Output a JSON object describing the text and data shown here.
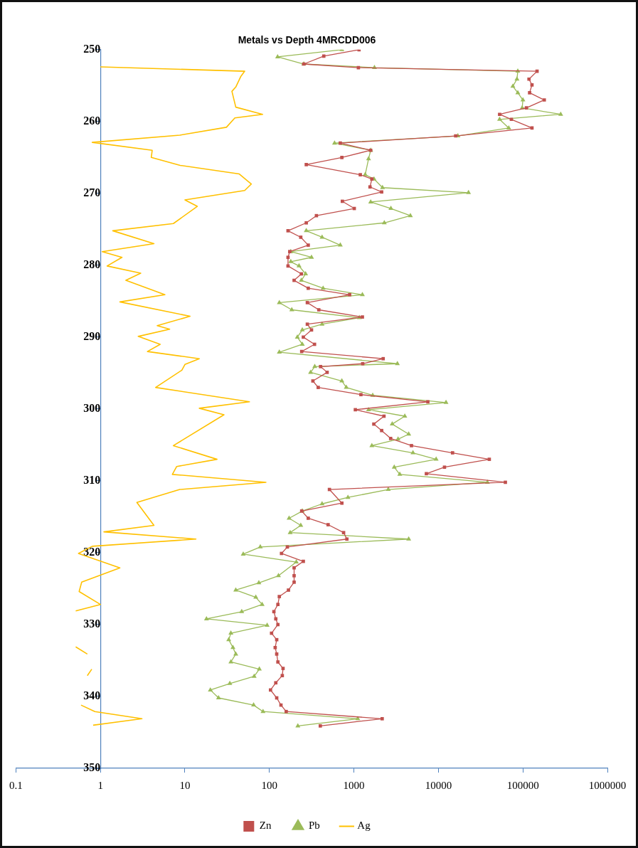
{
  "chart_data": {
    "type": "line",
    "title": "Metals vs Depth 4MRCDD006",
    "orientation": "horizontal",
    "log": "x",
    "legend": "bottom",
    "grid": false,
    "xlim": [
      0.1,
      1000000
    ],
    "xticks": [
      0.1,
      1,
      10,
      100,
      1000,
      10000,
      100000,
      1000000
    ],
    "ylim": [
      350,
      250
    ],
    "yticks": [
      250,
      260,
      270,
      280,
      290,
      300,
      310,
      320,
      330,
      340,
      350
    ],
    "series": [
      {
        "name": "Zn",
        "color": "#c0504d",
        "marker": "square",
        "x": [
          250,
          250.9,
          252,
          252.5,
          253,
          254.1,
          254.9,
          256,
          257,
          258.1,
          259,
          259.7,
          260.9,
          262,
          263,
          264,
          265,
          266,
          267.4,
          268,
          269.1,
          269.8,
          271.1,
          272.1,
          273.1,
          274.1,
          275.2,
          276.1,
          277.2,
          278.1,
          278.9,
          280.1,
          281.2,
          282.1,
          283.2,
          284.1,
          285.2,
          286.2,
          287.2,
          288.2,
          289,
          290,
          291,
          292,
          293,
          293.7,
          294.1,
          294.9,
          296.1,
          297,
          298,
          299,
          300.1,
          301,
          302.1,
          303,
          304.1,
          305.1,
          306.1,
          307,
          308.1,
          309,
          310.2,
          311.2,
          313.1,
          314.2,
          315.2,
          316.1,
          317.2,
          318.1,
          319.2,
          320.1,
          321.2,
          322.1,
          323.2,
          324.1,
          325.2,
          326.1,
          327.2,
          328.2,
          329.2,
          330,
          331.2,
          332.1,
          333.2,
          334.1,
          335.2,
          336.1,
          337.1,
          338.1,
          339.1,
          340.2,
          341.2,
          342.1,
          343.1,
          344.1
        ],
        "values": [
          1150,
          440,
          255,
          1130,
          147000,
          118000,
          128000,
          120000,
          179000,
          110000,
          53000,
          73000,
          128000,
          16000,
          690,
          1580,
          720,
          273,
          1190,
          1630,
          1550,
          2130,
          730,
          1010,
          360,
          273,
          166,
          235,
          288,
          174,
          166,
          166,
          239,
          196,
          288,
          890,
          281,
          384,
          1260,
          281,
          315,
          252,
          342,
          241,
          2220,
          1270,
          403,
          482,
          327,
          378,
          1210,
          7500,
          1040,
          2270,
          1720,
          2130,
          2720,
          4800,
          14700,
          40000,
          11800,
          7200,
          62000,
          513,
          720,
          241,
          288,
          495,
          755,
          826,
          163,
          139,
          252,
          196,
          196,
          196,
          168,
          131,
          126,
          113,
          119,
          126,
          106,
          122,
          117,
          122,
          126,
          145,
          142,
          119,
          103,
          122,
          137,
          158,
          2160,
          400
        ]
      },
      {
        "name": "Pb",
        "color": "#9bbb59",
        "marker": "triangle",
        "x": [
          250,
          251,
          252,
          252.5,
          253,
          254.1,
          255.1,
          256,
          257,
          258.1,
          259,
          259.7,
          260.9,
          262,
          263,
          264,
          265.2,
          267.4,
          268,
          269.2,
          269.9,
          271.2,
          272.1,
          273.1,
          274.1,
          275.2,
          276.1,
          277.2,
          278.1,
          278.9,
          279.5,
          280.1,
          281.2,
          282.1,
          283.2,
          284.1,
          285.2,
          286.2,
          287.3,
          288.2,
          289,
          290,
          291,
          292.1,
          293.7,
          294.1,
          294.9,
          296.1,
          297,
          298.1,
          299.1,
          300.1,
          301,
          302.1,
          303.5,
          304.2,
          305.1,
          306.1,
          307,
          308.1,
          309.1,
          310.2,
          311.2,
          312.3,
          313.2,
          314.2,
          315.2,
          316.2,
          317.2,
          318.1,
          319.2,
          320.2,
          321.3,
          323.2,
          324.2,
          325.2,
          326.2,
          327.2,
          328.2,
          329.2,
          330.1,
          331.2,
          332.1,
          333.2,
          334.1,
          335.2,
          336.2,
          337.2,
          338.2,
          339.1,
          340.2,
          341.2,
          342.1,
          343.1,
          344.1
        ],
        "values": [
          720,
          125,
          255,
          1750,
          87000,
          85000,
          76000,
          87000,
          100000,
          98000,
          280000,
          53000,
          68000,
          17000,
          590,
          1580,
          1490,
          1360,
          1730,
          2180,
          22700,
          1580,
          2740,
          4660,
          2290,
          273,
          420,
          690,
          179,
          315,
          179,
          224,
          268,
          239,
          432,
          1260,
          131,
          184,
          1160,
          420,
          245,
          214,
          245,
          131,
          3270,
          344,
          307,
          720,
          812,
          1670,
          12300,
          1490,
          4000,
          2840,
          4450,
          3330,
          1630,
          5000,
          9400,
          3000,
          3490,
          38000,
          2550,
          850,
          420,
          245,
          171,
          235,
          176,
          4450,
          78,
          49,
          208,
          128,
          75,
          40,
          69,
          82,
          47,
          18,
          94,
          35,
          33,
          37,
          40,
          35,
          76,
          66,
          34,
          20,
          25,
          65,
          84,
          1110,
          217
        ]
      },
      {
        "name": "Ag",
        "color": "#ffc000",
        "marker": "none",
        "x": [
          252.4,
          253,
          253.7,
          255.2,
          255.8,
          258,
          259,
          259.5,
          260.8,
          261.9,
          262.9,
          264,
          265,
          266.1,
          267.3,
          268.7,
          269.6,
          270.9,
          271.8,
          274.2,
          275.2,
          277,
          278.1,
          278.9,
          280.1,
          281.1,
          282.1,
          284.1,
          285.1,
          287.1,
          288.4,
          288.9,
          289.9,
          291,
          292,
          293,
          293.8,
          294.6,
          297,
          299,
          299.9,
          300.8,
          305.1,
          307,
          308,
          309.1,
          310.2,
          311.2,
          313,
          316.2,
          317.1,
          318.1,
          319.1,
          320.1,
          322.1,
          324.1,
          325.4,
          327.2,
          328.1,
          330.5,
          333.1,
          334.1,
          335.1,
          336.2,
          337.1,
          339,
          341.2,
          342.1,
          343.1,
          344
        ],
        "values": [
          1,
          51,
          46,
          40,
          36,
          40,
          83,
          39,
          31,
          8.7,
          0.8,
          4.1,
          4,
          8.8,
          44,
          61,
          51,
          10,
          14,
          7.3,
          1.4,
          4.3,
          1.05,
          1.8,
          1.2,
          3,
          2,
          5.8,
          1.7,
          11.5,
          4.7,
          6.6,
          2.8,
          5.1,
          3.6,
          14.8,
          10,
          9.2,
          4.5,
          58,
          14.8,
          29,
          7.3,
          24,
          8,
          7.1,
          91,
          8.7,
          2.7,
          4.3,
          1.1,
          13.5,
          0.8,
          0.55,
          1.7,
          0.6,
          0.56,
          1,
          0.51,
          null,
          0.51,
          0.7,
          null,
          0.79,
          0.7,
          null,
          0.59,
          0.86,
          3.1,
          0.82
        ]
      }
    ]
  }
}
